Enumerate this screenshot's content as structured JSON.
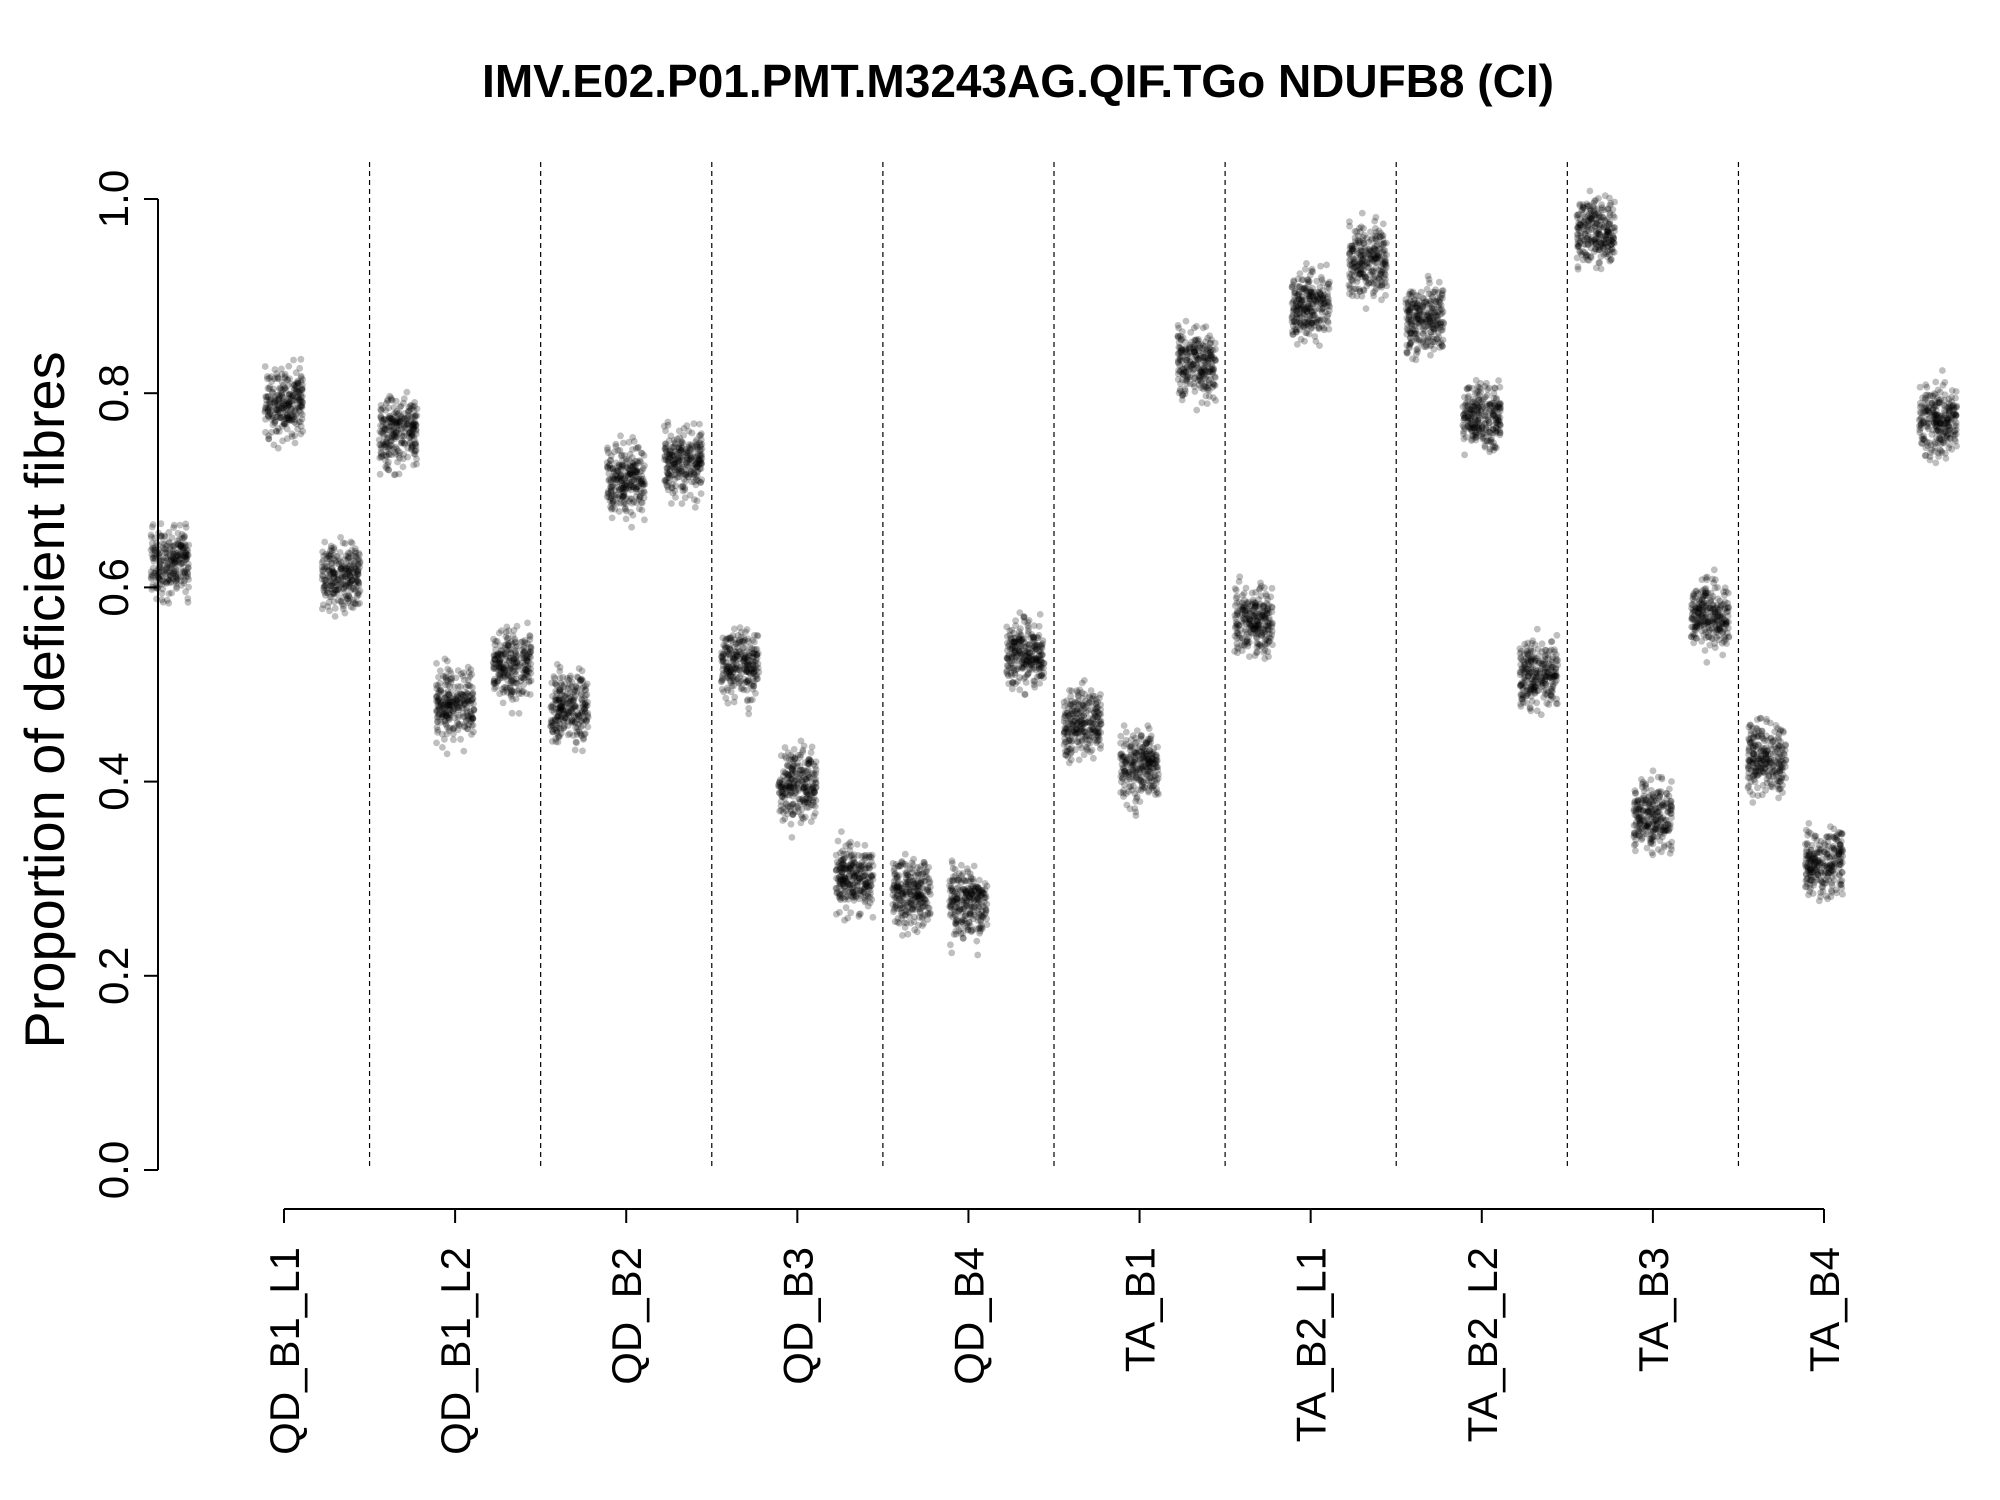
{
  "chart_data": {
    "type": "scatter",
    "title": "IMV.E02.P01.PMT.M3243AG.QIF.TGo NDUFB8 (CI)",
    "xlabel": "",
    "ylabel": "Proportion of deficient fibres",
    "ylim": [
      0,
      1
    ],
    "yticks": [
      "0.0",
      "0.2",
      "0.4",
      "0.6",
      "0.8",
      "1.0"
    ],
    "grid": false,
    "point_color": "#000000",
    "point_opacity": 0.25,
    "categories": [
      "QD_B1_L1",
      "QD_B1_L2",
      "QD_B2",
      "QD_B3",
      "QD_B4",
      "TA_B1",
      "TA_B2_L1",
      "TA_B2_L2",
      "TA_B3",
      "TA_B4"
    ],
    "series": [
      {
        "category": "QD_B1_L1",
        "values": [
          0.625,
          0.79,
          0.76
        ]
      },
      {
        "category": "QD_B1_L2",
        "values": [
          0.61,
          0.48,
          0.475
        ]
      },
      {
        "category": "QD_B2",
        "values": [
          0.52,
          0.71,
          0.52
        ]
      },
      {
        "category": "QD_B3",
        "values": [
          0.73,
          0.395,
          0.285
        ]
      },
      {
        "category": "QD_B4",
        "values": [
          0.3,
          0.275,
          0.46
        ]
      },
      {
        "category": "TA_B1",
        "values": [
          0.53,
          0.415,
          0.565
        ]
      },
      {
        "category": "TA_B2_L1",
        "values": [
          0.83,
          0.89,
          0.875
        ]
      },
      {
        "category": "TA_B2_L2",
        "values": [
          0.935,
          0.775,
          0.965
        ]
      },
      {
        "category": "TA_B3",
        "values": [
          0.51,
          0.365,
          0.425
        ]
      },
      {
        "category": "TA_B4",
        "values": [
          0.57,
          0.315,
          0.77
        ]
      }
    ]
  }
}
